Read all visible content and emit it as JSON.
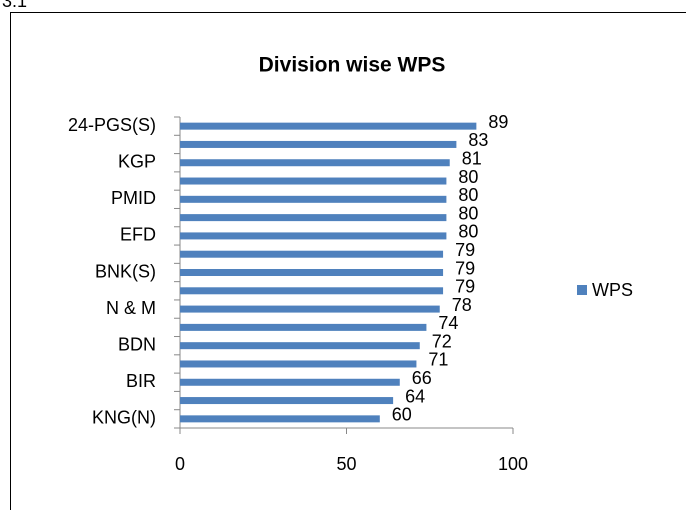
{
  "heading": "3.1",
  "chart_data": {
    "type": "bar",
    "orientation": "horizontal",
    "title": "Division wise WPS",
    "categories": [
      "24-PGS(S)",
      null,
      "KGP",
      null,
      "PMID",
      null,
      "EFD",
      null,
      "BNK(S)",
      null,
      "N & M",
      null,
      "BDN",
      null,
      "BIR",
      null,
      "KNG(N)"
    ],
    "series": [
      {
        "name": "WPS",
        "color": "#4f81bd",
        "values": [
          89,
          83,
          81,
          80,
          80,
          80,
          80,
          79,
          79,
          79,
          78,
          74,
          72,
          71,
          66,
          64,
          60
        ]
      }
    ],
    "xlim": [
      0,
      100
    ],
    "xticks": [
      0,
      50,
      100
    ],
    "legend": "right",
    "grid": false
  }
}
